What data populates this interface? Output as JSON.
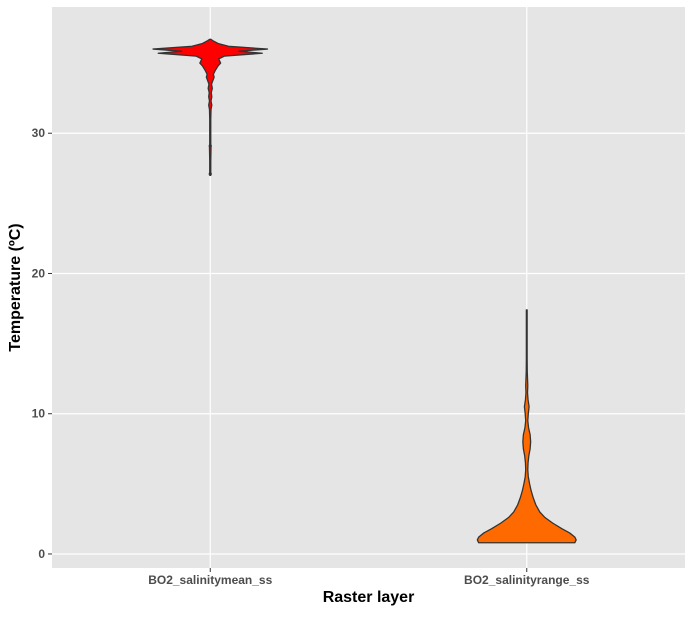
{
  "chart_data": {
    "type": "violin",
    "title": "",
    "xlabel": "Raster layer",
    "ylabel": "Temperature (ºC)",
    "ylim": [
      -1,
      39
    ],
    "y_ticks": [
      0,
      10,
      20,
      30
    ],
    "y_tick_labels": [
      "0",
      "10",
      "20",
      "30"
    ],
    "grid": true,
    "legend": "none",
    "categories": [
      "BO2_salinitymean_ss",
      "BO2_salinityrange_ss"
    ],
    "colors": {
      "panel_bg": "#e5e5e5",
      "grid": "#ffffff",
      "outline": "#333333",
      "BO2_salinitymean_ss": "#ff0000",
      "BO2_salinityrange_ss": "#ff6a00"
    },
    "series": [
      {
        "category": "BO2_salinitymean_ss",
        "min": 27,
        "max": 36.7,
        "outliers": [
          29.1,
          27.1
        ],
        "profile": [
          [
            27.0,
            0.004
          ],
          [
            28.0,
            0.004
          ],
          [
            29.0,
            0.006
          ],
          [
            29.2,
            0.004
          ],
          [
            30.0,
            0.004
          ],
          [
            31.0,
            0.004
          ],
          [
            31.7,
            0.006
          ],
          [
            32.0,
            0.012
          ],
          [
            32.3,
            0.006
          ],
          [
            32.6,
            0.012
          ],
          [
            32.9,
            0.008
          ],
          [
            33.2,
            0.016
          ],
          [
            33.5,
            0.01
          ],
          [
            33.8,
            0.022
          ],
          [
            34.0,
            0.03
          ],
          [
            34.2,
            0.024
          ],
          [
            34.5,
            0.04
          ],
          [
            34.8,
            0.06
          ],
          [
            35.0,
            0.08
          ],
          [
            35.3,
            0.065
          ],
          [
            35.5,
            0.11
          ],
          [
            35.7,
            0.4
          ],
          [
            35.85,
            0.22
          ],
          [
            36.0,
            0.44
          ],
          [
            36.2,
            0.14
          ],
          [
            36.4,
            0.06
          ],
          [
            36.6,
            0.02
          ],
          [
            36.7,
            0.004
          ]
        ]
      },
      {
        "category": "BO2_salinityrange_ss",
        "min": 0.8,
        "max": 17.4,
        "outliers": [],
        "profile": [
          [
            0.8,
            0.37
          ],
          [
            1.0,
            0.38
          ],
          [
            1.2,
            0.37
          ],
          [
            1.5,
            0.33
          ],
          [
            1.8,
            0.27
          ],
          [
            2.2,
            0.2
          ],
          [
            2.6,
            0.14
          ],
          [
            3.0,
            0.1
          ],
          [
            3.5,
            0.07
          ],
          [
            4.0,
            0.05
          ],
          [
            4.5,
            0.034
          ],
          [
            5.0,
            0.022
          ],
          [
            5.5,
            0.012
          ],
          [
            6.0,
            0.008
          ],
          [
            6.5,
            0.01
          ],
          [
            7.0,
            0.016
          ],
          [
            7.5,
            0.026
          ],
          [
            8.0,
            0.03
          ],
          [
            8.5,
            0.026
          ],
          [
            9.0,
            0.014
          ],
          [
            9.5,
            0.008
          ],
          [
            10.0,
            0.012
          ],
          [
            10.5,
            0.018
          ],
          [
            11.0,
            0.01
          ],
          [
            11.5,
            0.006
          ],
          [
            12.0,
            0.008
          ],
          [
            12.5,
            0.006
          ],
          [
            13.0,
            0.004
          ],
          [
            14.0,
            0.003
          ],
          [
            15.0,
            0.003
          ],
          [
            16.0,
            0.003
          ],
          [
            17.4,
            0.003
          ]
        ]
      }
    ]
  }
}
